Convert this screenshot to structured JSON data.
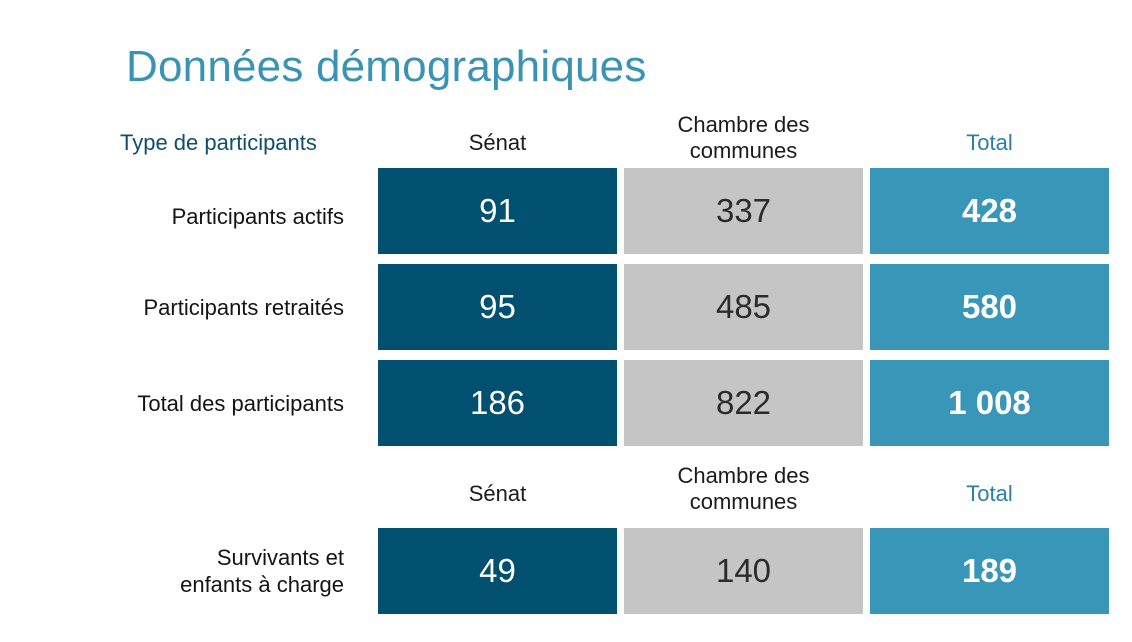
{
  "title": "Données démographiques",
  "colors": {
    "title": "#3a93b5",
    "senat": "#02506f",
    "chambre": "#c5c5c5",
    "total": "#3896b8"
  },
  "chart_data": {
    "type": "table",
    "title": "Données démographiques",
    "row_header": "Type de participants",
    "columns": [
      "Sénat",
      "Chambre des communes",
      "Total"
    ],
    "rows": [
      {
        "label": "Participants actifs",
        "values": [
          "91",
          "337",
          "428"
        ]
      },
      {
        "label": "Participants retraités",
        "values": [
          "95",
          "485",
          "580"
        ]
      },
      {
        "label": "Total des participants",
        "values": [
          "186",
          "822",
          "1 008"
        ]
      },
      {
        "label": "Survivants et enfants à charge",
        "values": [
          "49",
          "140",
          "189"
        ]
      }
    ],
    "second_header": {
      "senat": "Sénat",
      "chambre_line1": "Chambre des",
      "chambre_line2": "communes",
      "total": "Total"
    },
    "first_header": {
      "chambre_line1": "Chambre des",
      "chambre_line2": "communes"
    },
    "survivor_label_lines": [
      "Survivants et",
      "enfants à charge"
    ]
  }
}
